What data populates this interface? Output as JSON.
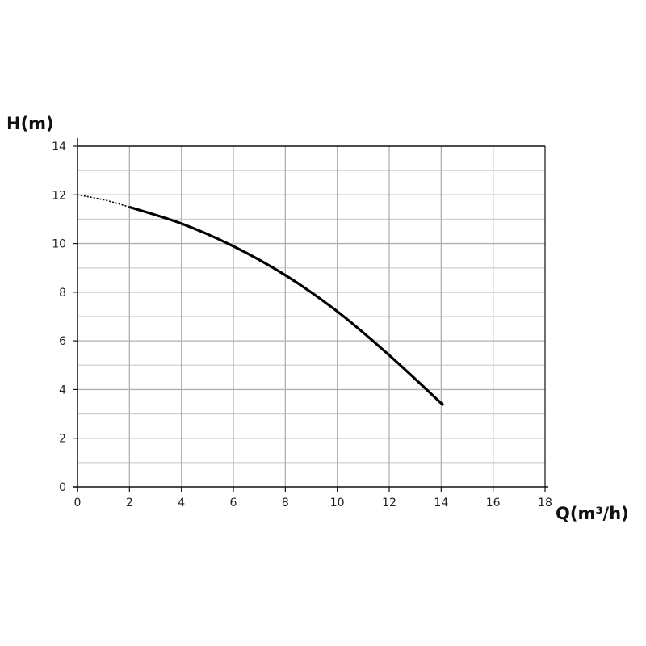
{
  "chart_data": {
    "type": "line",
    "title": "",
    "xlabel": "Q(m³/h)",
    "ylabel": "H(m)",
    "xlim": [
      0,
      18
    ],
    "ylim": [
      0,
      14
    ],
    "xticks": [
      0,
      2,
      4,
      6,
      8,
      10,
      12,
      14,
      16,
      18
    ],
    "yticks": [
      0,
      2,
      4,
      6,
      8,
      10,
      12,
      14
    ],
    "grid": true,
    "line_color": "#000000",
    "series": [
      {
        "style": "dotted",
        "x": [
          0,
          1,
          2
        ],
        "y": [
          12.0,
          11.8,
          11.5
        ]
      },
      {
        "style": "solid",
        "x": [
          2,
          4,
          6,
          8,
          10,
          12,
          14.08
        ],
        "y": [
          11.5,
          10.82,
          9.89,
          8.7,
          7.21,
          5.41,
          3.36
        ]
      }
    ]
  }
}
